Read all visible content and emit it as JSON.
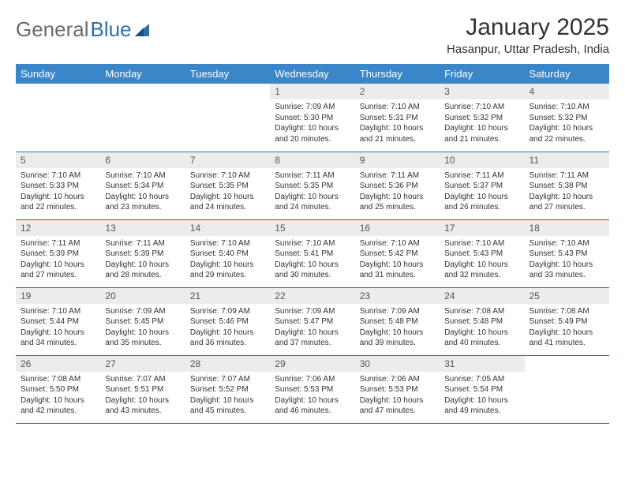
{
  "brand": {
    "word1": "General",
    "word2": "Blue"
  },
  "title": "January 2025",
  "location": "Hasanpur, Uttar Pradesh, India",
  "colors": {
    "header_bg": "#3a86c8",
    "header_text": "#ffffff",
    "daynum_bg": "#ececec",
    "border": "#2f6fa8",
    "logo_gray": "#6b6b6b",
    "logo_blue": "#2f6fa8",
    "text": "#333333"
  },
  "weekdays": [
    "Sunday",
    "Monday",
    "Tuesday",
    "Wednesday",
    "Thursday",
    "Friday",
    "Saturday"
  ],
  "weeks": [
    [
      {
        "day": "",
        "sunrise": "",
        "sunset": "",
        "daylight": "",
        "empty": true
      },
      {
        "day": "",
        "sunrise": "",
        "sunset": "",
        "daylight": "",
        "empty": true
      },
      {
        "day": "",
        "sunrise": "",
        "sunset": "",
        "daylight": "",
        "empty": true
      },
      {
        "day": "1",
        "sunrise": "Sunrise: 7:09 AM",
        "sunset": "Sunset: 5:30 PM",
        "daylight": "Daylight: 10 hours and 20 minutes."
      },
      {
        "day": "2",
        "sunrise": "Sunrise: 7:10 AM",
        "sunset": "Sunset: 5:31 PM",
        "daylight": "Daylight: 10 hours and 21 minutes."
      },
      {
        "day": "3",
        "sunrise": "Sunrise: 7:10 AM",
        "sunset": "Sunset: 5:32 PM",
        "daylight": "Daylight: 10 hours and 21 minutes."
      },
      {
        "day": "4",
        "sunrise": "Sunrise: 7:10 AM",
        "sunset": "Sunset: 5:32 PM",
        "daylight": "Daylight: 10 hours and 22 minutes."
      }
    ],
    [
      {
        "day": "5",
        "sunrise": "Sunrise: 7:10 AM",
        "sunset": "Sunset: 5:33 PM",
        "daylight": "Daylight: 10 hours and 22 minutes."
      },
      {
        "day": "6",
        "sunrise": "Sunrise: 7:10 AM",
        "sunset": "Sunset: 5:34 PM",
        "daylight": "Daylight: 10 hours and 23 minutes."
      },
      {
        "day": "7",
        "sunrise": "Sunrise: 7:10 AM",
        "sunset": "Sunset: 5:35 PM",
        "daylight": "Daylight: 10 hours and 24 minutes."
      },
      {
        "day": "8",
        "sunrise": "Sunrise: 7:11 AM",
        "sunset": "Sunset: 5:35 PM",
        "daylight": "Daylight: 10 hours and 24 minutes."
      },
      {
        "day": "9",
        "sunrise": "Sunrise: 7:11 AM",
        "sunset": "Sunset: 5:36 PM",
        "daylight": "Daylight: 10 hours and 25 minutes."
      },
      {
        "day": "10",
        "sunrise": "Sunrise: 7:11 AM",
        "sunset": "Sunset: 5:37 PM",
        "daylight": "Daylight: 10 hours and 26 minutes."
      },
      {
        "day": "11",
        "sunrise": "Sunrise: 7:11 AM",
        "sunset": "Sunset: 5:38 PM",
        "daylight": "Daylight: 10 hours and 27 minutes."
      }
    ],
    [
      {
        "day": "12",
        "sunrise": "Sunrise: 7:11 AM",
        "sunset": "Sunset: 5:39 PM",
        "daylight": "Daylight: 10 hours and 27 minutes."
      },
      {
        "day": "13",
        "sunrise": "Sunrise: 7:11 AM",
        "sunset": "Sunset: 5:39 PM",
        "daylight": "Daylight: 10 hours and 28 minutes."
      },
      {
        "day": "14",
        "sunrise": "Sunrise: 7:10 AM",
        "sunset": "Sunset: 5:40 PM",
        "daylight": "Daylight: 10 hours and 29 minutes."
      },
      {
        "day": "15",
        "sunrise": "Sunrise: 7:10 AM",
        "sunset": "Sunset: 5:41 PM",
        "daylight": "Daylight: 10 hours and 30 minutes."
      },
      {
        "day": "16",
        "sunrise": "Sunrise: 7:10 AM",
        "sunset": "Sunset: 5:42 PM",
        "daylight": "Daylight: 10 hours and 31 minutes."
      },
      {
        "day": "17",
        "sunrise": "Sunrise: 7:10 AM",
        "sunset": "Sunset: 5:43 PM",
        "daylight": "Daylight: 10 hours and 32 minutes."
      },
      {
        "day": "18",
        "sunrise": "Sunrise: 7:10 AM",
        "sunset": "Sunset: 5:43 PM",
        "daylight": "Daylight: 10 hours and 33 minutes."
      }
    ],
    [
      {
        "day": "19",
        "sunrise": "Sunrise: 7:10 AM",
        "sunset": "Sunset: 5:44 PM",
        "daylight": "Daylight: 10 hours and 34 minutes."
      },
      {
        "day": "20",
        "sunrise": "Sunrise: 7:09 AM",
        "sunset": "Sunset: 5:45 PM",
        "daylight": "Daylight: 10 hours and 35 minutes."
      },
      {
        "day": "21",
        "sunrise": "Sunrise: 7:09 AM",
        "sunset": "Sunset: 5:46 PM",
        "daylight": "Daylight: 10 hours and 36 minutes."
      },
      {
        "day": "22",
        "sunrise": "Sunrise: 7:09 AM",
        "sunset": "Sunset: 5:47 PM",
        "daylight": "Daylight: 10 hours and 37 minutes."
      },
      {
        "day": "23",
        "sunrise": "Sunrise: 7:09 AM",
        "sunset": "Sunset: 5:48 PM",
        "daylight": "Daylight: 10 hours and 39 minutes."
      },
      {
        "day": "24",
        "sunrise": "Sunrise: 7:08 AM",
        "sunset": "Sunset: 5:48 PM",
        "daylight": "Daylight: 10 hours and 40 minutes."
      },
      {
        "day": "25",
        "sunrise": "Sunrise: 7:08 AM",
        "sunset": "Sunset: 5:49 PM",
        "daylight": "Daylight: 10 hours and 41 minutes."
      }
    ],
    [
      {
        "day": "26",
        "sunrise": "Sunrise: 7:08 AM",
        "sunset": "Sunset: 5:50 PM",
        "daylight": "Daylight: 10 hours and 42 minutes."
      },
      {
        "day": "27",
        "sunrise": "Sunrise: 7:07 AM",
        "sunset": "Sunset: 5:51 PM",
        "daylight": "Daylight: 10 hours and 43 minutes."
      },
      {
        "day": "28",
        "sunrise": "Sunrise: 7:07 AM",
        "sunset": "Sunset: 5:52 PM",
        "daylight": "Daylight: 10 hours and 45 minutes."
      },
      {
        "day": "29",
        "sunrise": "Sunrise: 7:06 AM",
        "sunset": "Sunset: 5:53 PM",
        "daylight": "Daylight: 10 hours and 46 minutes."
      },
      {
        "day": "30",
        "sunrise": "Sunrise: 7:06 AM",
        "sunset": "Sunset: 5:53 PM",
        "daylight": "Daylight: 10 hours and 47 minutes."
      },
      {
        "day": "31",
        "sunrise": "Sunrise: 7:05 AM",
        "sunset": "Sunset: 5:54 PM",
        "daylight": "Daylight: 10 hours and 49 minutes."
      },
      {
        "day": "",
        "sunrise": "",
        "sunset": "",
        "daylight": "",
        "empty": true
      }
    ]
  ]
}
